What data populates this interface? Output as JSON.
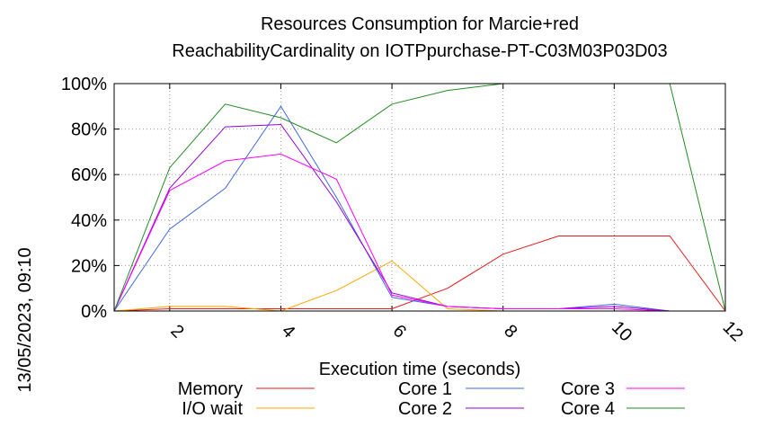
{
  "chart_data": {
    "type": "line",
    "title": [
      "Resources Consumption for Marcie+red",
      "ReachabilityCardinality on IOTPpurchase-PT-C03M03P03D03"
    ],
    "xlabel": "Execution time (seconds)",
    "ylabel": "",
    "side_label": "13/05/2023, 09:10",
    "xlim": [
      1,
      12
    ],
    "ylim": [
      0,
      100
    ],
    "x_ticks": [
      2,
      4,
      6,
      8,
      10,
      12
    ],
    "y_ticks": [
      "0%",
      "20%",
      "40%",
      "60%",
      "80%",
      "100%"
    ],
    "y_tick_values": [
      0,
      20,
      40,
      60,
      80,
      100
    ],
    "grid": true,
    "legend_position": "bottom",
    "x": [
      1,
      2,
      3,
      4,
      5,
      6,
      7,
      8,
      9,
      10,
      11,
      12
    ],
    "series": [
      {
        "name": "Memory",
        "color": "#e41a1c",
        "values": [
          0,
          1,
          1,
          1,
          1,
          1,
          10,
          25,
          33,
          33,
          33,
          0
        ]
      },
      {
        "name": "I/O wait",
        "color": "#ffa500",
        "values": [
          0,
          2,
          2,
          0,
          9,
          22,
          1,
          0,
          0,
          0,
          0,
          0
        ]
      },
      {
        "name": "Core 1",
        "color": "#4169e1",
        "values": [
          0,
          36,
          54,
          90,
          50,
          6,
          2,
          1,
          1,
          3,
          0,
          0
        ]
      },
      {
        "name": "Core 2",
        "color": "#9400d3",
        "values": [
          0,
          54,
          81,
          82,
          48,
          8,
          2,
          1,
          1,
          2,
          0,
          0
        ]
      },
      {
        "name": "Core 3",
        "color": "#ff00ff",
        "values": [
          0,
          53,
          66,
          69,
          58,
          7,
          2,
          1,
          1,
          1,
          0,
          0
        ]
      },
      {
        "name": "Core 4",
        "color": "#228b22",
        "values": [
          0,
          63,
          91,
          85,
          74,
          91,
          97,
          100,
          100,
          100,
          100,
          0
        ]
      }
    ]
  }
}
